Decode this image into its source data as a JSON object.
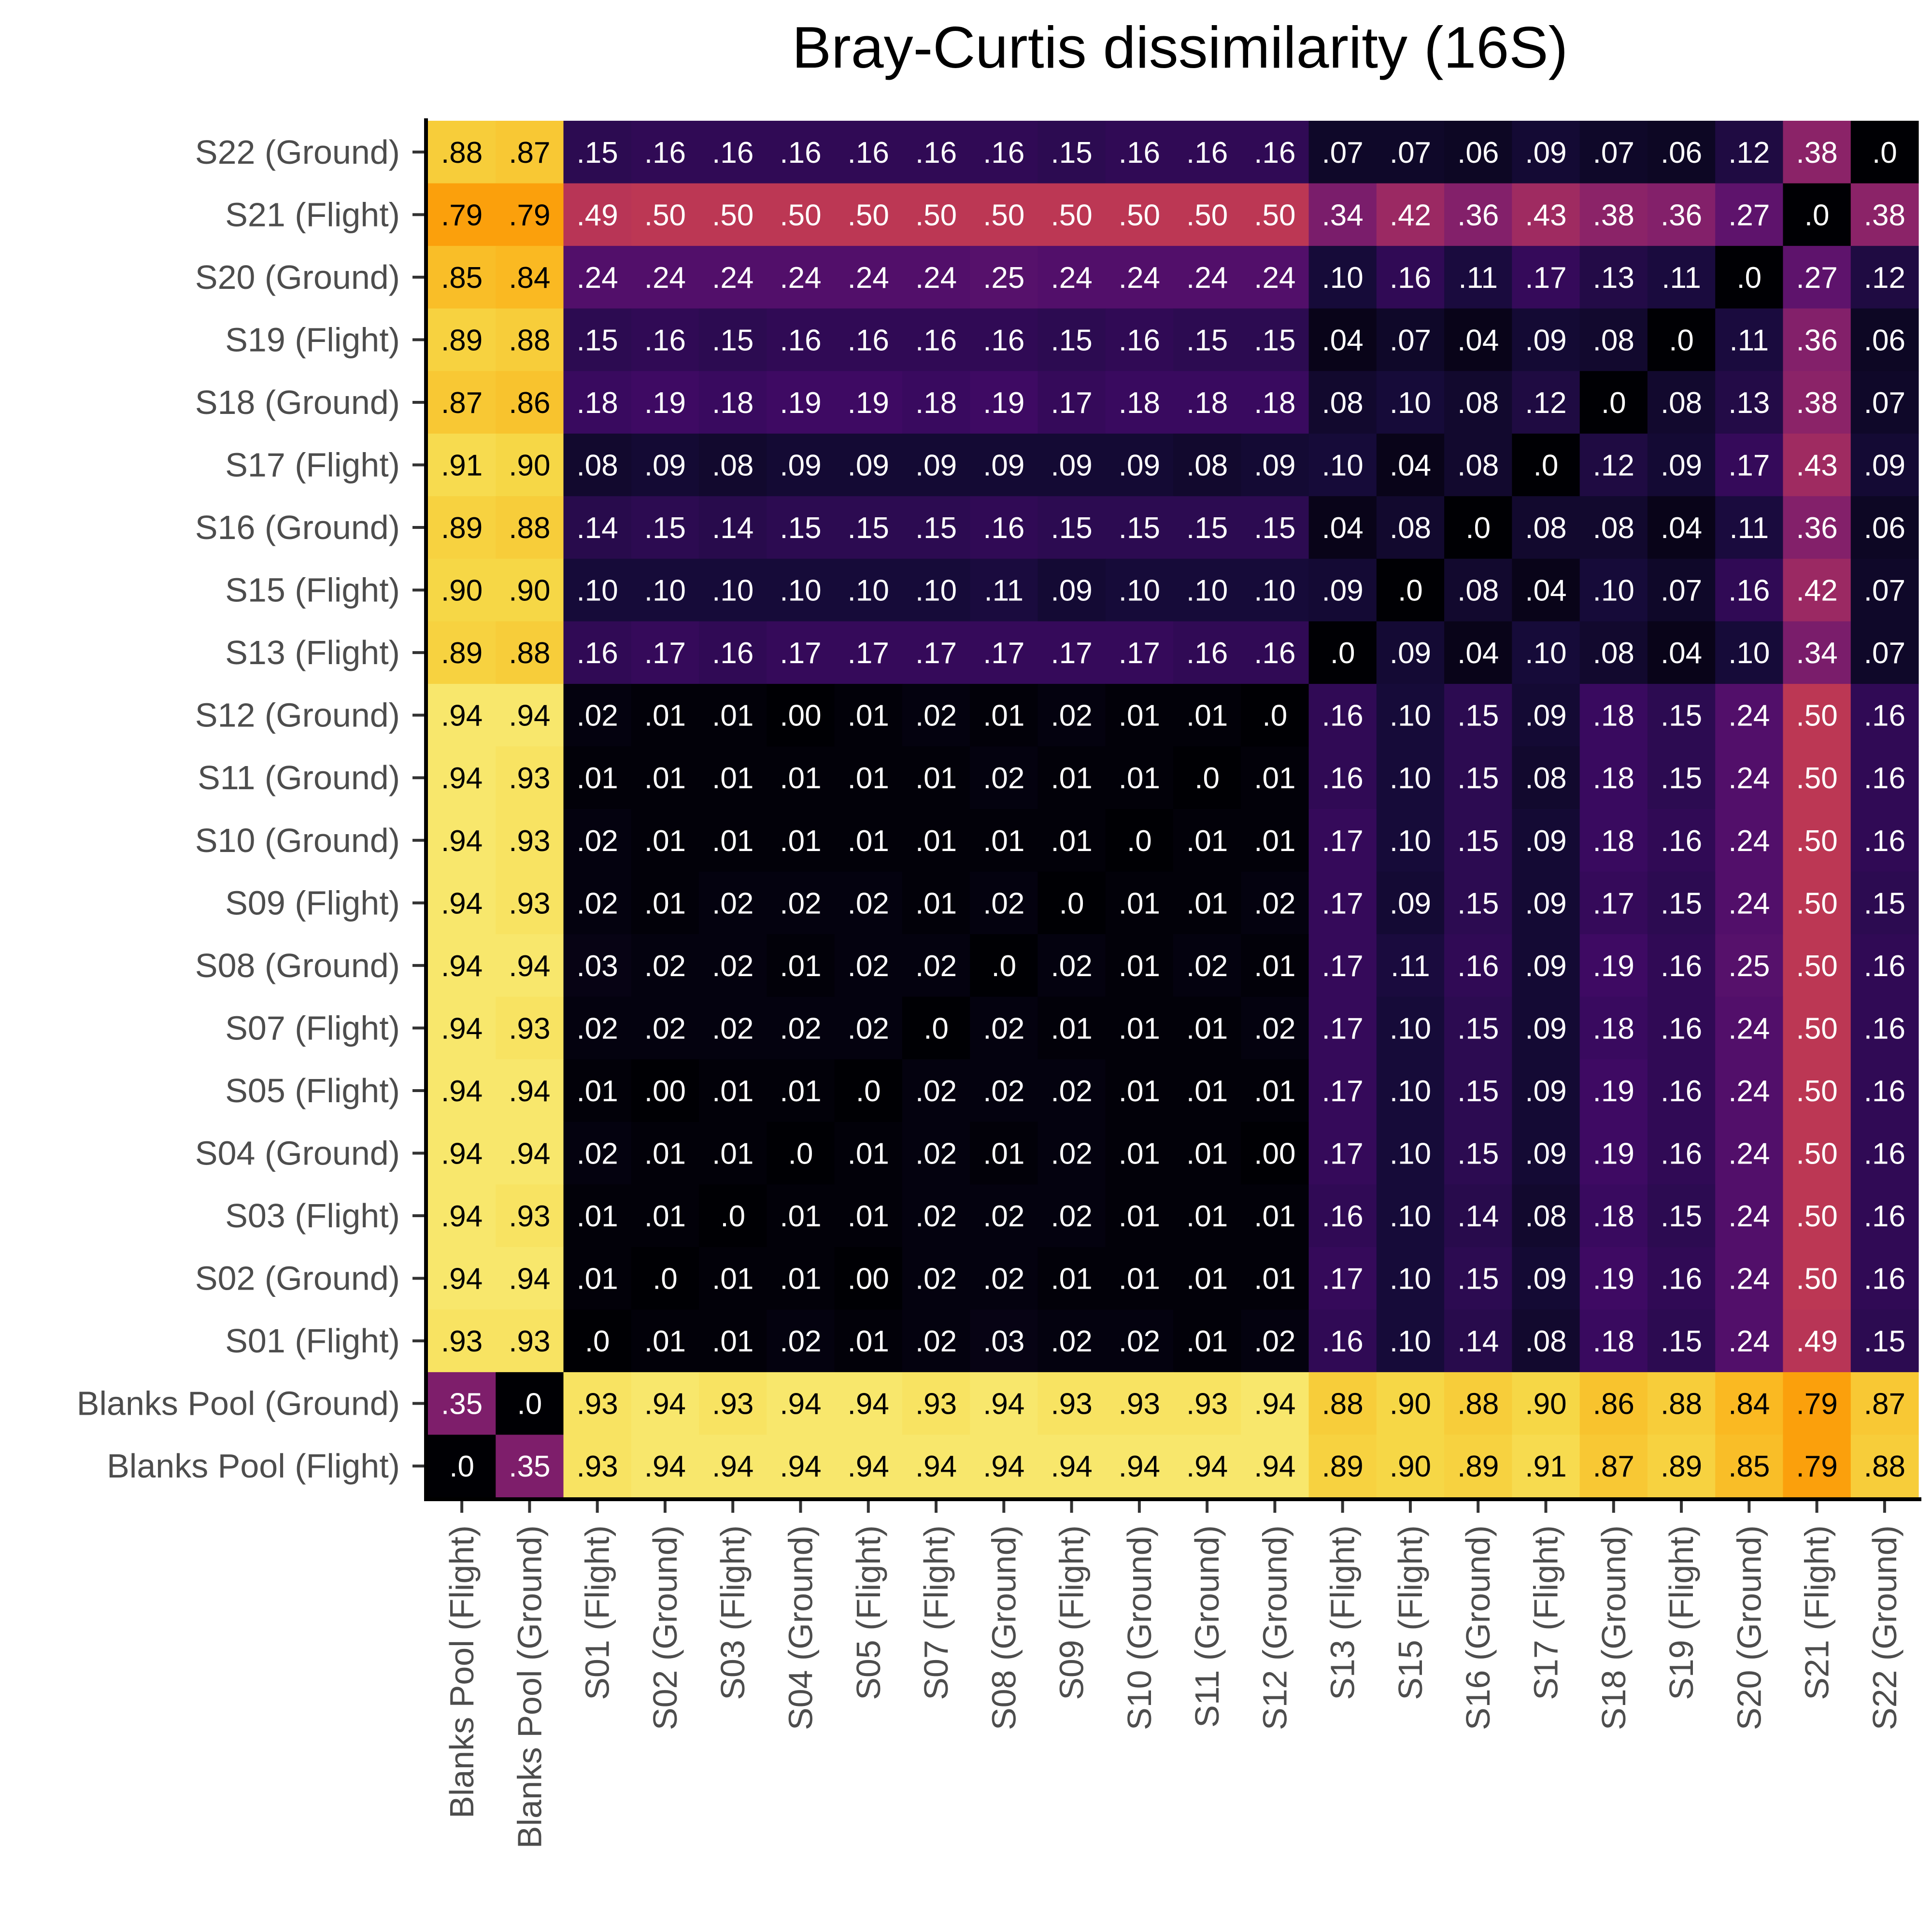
{
  "chart_data": {
    "type": "heatmap",
    "title": "Bray-Curtis dissimilarity (16S)",
    "xlabel": "",
    "ylabel": "",
    "colormap": "inferno",
    "color_range": [
      0,
      1
    ],
    "legend": "none",
    "x_labels": [
      "Blanks Pool (Flight)",
      "Blanks Pool (Ground)",
      "S01 (Flight)",
      "S02 (Ground)",
      "S03 (Flight)",
      "S04 (Ground)",
      "S05 (Flight)",
      "S07 (Flight)",
      "S08 (Ground)",
      "S09 (Flight)",
      "S10 (Ground)",
      "S11 (Ground)",
      "S12 (Ground)",
      "S13 (Flight)",
      "S15 (Flight)",
      "S16 (Ground)",
      "S17 (Flight)",
      "S18 (Ground)",
      "S19 (Flight)",
      "S20 (Ground)",
      "S21 (Flight)",
      "S22 (Ground)"
    ],
    "y_labels_top_to_bottom": [
      "S22 (Ground)",
      "S21 (Flight)",
      "S20 (Ground)",
      "S19 (Flight)",
      "S18 (Ground)",
      "S17 (Flight)",
      "S16 (Ground)",
      "S15 (Flight)",
      "S13 (Flight)",
      "S12 (Ground)",
      "S11 (Ground)",
      "S10 (Ground)",
      "S09 (Flight)",
      "S08 (Ground)",
      "S07 (Flight)",
      "S05 (Flight)",
      "S04 (Ground)",
      "S03 (Flight)",
      "S02 (Ground)",
      "S01 (Flight)",
      "Blanks Pool (Ground)",
      "Blanks Pool (Flight)"
    ],
    "values": [
      [
        0.88,
        0.87,
        0.15,
        0.16,
        0.16,
        0.16,
        0.16,
        0.16,
        0.16,
        0.15,
        0.16,
        0.16,
        0.16,
        0.07,
        0.07,
        0.06,
        0.09,
        0.07,
        0.06,
        0.12,
        0.38,
        0.0
      ],
      [
        0.79,
        0.79,
        0.49,
        0.5,
        0.5,
        0.5,
        0.5,
        0.5,
        0.5,
        0.5,
        0.5,
        0.5,
        0.5,
        0.34,
        0.42,
        0.36,
        0.43,
        0.38,
        0.36,
        0.27,
        0.0,
        0.38
      ],
      [
        0.85,
        0.84,
        0.24,
        0.24,
        0.24,
        0.24,
        0.24,
        0.24,
        0.25,
        0.24,
        0.24,
        0.24,
        0.24,
        0.1,
        0.16,
        0.11,
        0.17,
        0.13,
        0.11,
        0.0,
        0.27,
        0.12
      ],
      [
        0.89,
        0.88,
        0.15,
        0.16,
        0.15,
        0.16,
        0.16,
        0.16,
        0.16,
        0.15,
        0.16,
        0.15,
        0.15,
        0.04,
        0.07,
        0.04,
        0.09,
        0.08,
        0.0,
        0.11,
        0.36,
        0.06
      ],
      [
        0.87,
        0.86,
        0.18,
        0.19,
        0.18,
        0.19,
        0.19,
        0.18,
        0.19,
        0.17,
        0.18,
        0.18,
        0.18,
        0.08,
        0.1,
        0.08,
        0.12,
        0.0,
        0.08,
        0.13,
        0.38,
        0.07
      ],
      [
        0.91,
        0.9,
        0.08,
        0.09,
        0.08,
        0.09,
        0.09,
        0.09,
        0.09,
        0.09,
        0.09,
        0.08,
        0.09,
        0.1,
        0.04,
        0.08,
        0.0,
        0.12,
        0.09,
        0.17,
        0.43,
        0.09
      ],
      [
        0.89,
        0.88,
        0.14,
        0.15,
        0.14,
        0.15,
        0.15,
        0.15,
        0.16,
        0.15,
        0.15,
        0.15,
        0.15,
        0.04,
        0.08,
        0.0,
        0.08,
        0.08,
        0.04,
        0.11,
        0.36,
        0.06
      ],
      [
        0.9,
        0.9,
        0.1,
        0.1,
        0.1,
        0.1,
        0.1,
        0.1,
        0.11,
        0.09,
        0.1,
        0.1,
        0.1,
        0.09,
        0.0,
        0.08,
        0.04,
        0.1,
        0.07,
        0.16,
        0.42,
        0.07
      ],
      [
        0.89,
        0.88,
        0.16,
        0.17,
        0.16,
        0.17,
        0.17,
        0.17,
        0.17,
        0.17,
        0.17,
        0.16,
        0.16,
        0.0,
        0.09,
        0.04,
        0.1,
        0.08,
        0.04,
        0.1,
        0.34,
        0.07
      ],
      [
        0.94,
        0.94,
        0.02,
        0.01,
        0.01,
        0.0,
        0.01,
        0.02,
        0.01,
        0.02,
        0.01,
        0.01,
        0.0,
        0.16,
        0.1,
        0.15,
        0.09,
        0.18,
        0.15,
        0.24,
        0.5,
        0.16
      ],
      [
        0.94,
        0.93,
        0.01,
        0.01,
        0.01,
        0.01,
        0.01,
        0.01,
        0.02,
        0.01,
        0.01,
        0.0,
        0.01,
        0.16,
        0.1,
        0.15,
        0.08,
        0.18,
        0.15,
        0.24,
        0.5,
        0.16
      ],
      [
        0.94,
        0.93,
        0.02,
        0.01,
        0.01,
        0.01,
        0.01,
        0.01,
        0.01,
        0.01,
        0.0,
        0.01,
        0.01,
        0.17,
        0.1,
        0.15,
        0.09,
        0.18,
        0.16,
        0.24,
        0.5,
        0.16
      ],
      [
        0.94,
        0.93,
        0.02,
        0.01,
        0.02,
        0.02,
        0.02,
        0.01,
        0.02,
        0.0,
        0.01,
        0.01,
        0.02,
        0.17,
        0.09,
        0.15,
        0.09,
        0.17,
        0.15,
        0.24,
        0.5,
        0.15
      ],
      [
        0.94,
        0.94,
        0.03,
        0.02,
        0.02,
        0.01,
        0.02,
        0.02,
        0.0,
        0.02,
        0.01,
        0.02,
        0.01,
        0.17,
        0.11,
        0.16,
        0.09,
        0.19,
        0.16,
        0.25,
        0.5,
        0.16
      ],
      [
        0.94,
        0.93,
        0.02,
        0.02,
        0.02,
        0.02,
        0.02,
        0.0,
        0.02,
        0.01,
        0.01,
        0.01,
        0.02,
        0.17,
        0.1,
        0.15,
        0.09,
        0.18,
        0.16,
        0.24,
        0.5,
        0.16
      ],
      [
        0.94,
        0.94,
        0.01,
        0.0,
        0.01,
        0.01,
        0.0,
        0.02,
        0.02,
        0.02,
        0.01,
        0.01,
        0.01,
        0.17,
        0.1,
        0.15,
        0.09,
        0.19,
        0.16,
        0.24,
        0.5,
        0.16
      ],
      [
        0.94,
        0.94,
        0.02,
        0.01,
        0.01,
        0.0,
        0.01,
        0.02,
        0.01,
        0.02,
        0.01,
        0.01,
        0.0,
        0.17,
        0.1,
        0.15,
        0.09,
        0.19,
        0.16,
        0.24,
        0.5,
        0.16
      ],
      [
        0.94,
        0.93,
        0.01,
        0.01,
        0.0,
        0.01,
        0.01,
        0.02,
        0.02,
        0.02,
        0.01,
        0.01,
        0.01,
        0.16,
        0.1,
        0.14,
        0.08,
        0.18,
        0.15,
        0.24,
        0.5,
        0.16
      ],
      [
        0.94,
        0.94,
        0.01,
        0.0,
        0.01,
        0.01,
        0.0,
        0.02,
        0.02,
        0.01,
        0.01,
        0.01,
        0.01,
        0.17,
        0.1,
        0.15,
        0.09,
        0.19,
        0.16,
        0.24,
        0.5,
        0.16
      ],
      [
        0.93,
        0.93,
        0.0,
        0.01,
        0.01,
        0.02,
        0.01,
        0.02,
        0.03,
        0.02,
        0.02,
        0.01,
        0.02,
        0.16,
        0.1,
        0.14,
        0.08,
        0.18,
        0.15,
        0.24,
        0.49,
        0.15
      ],
      [
        0.35,
        0.0,
        0.93,
        0.94,
        0.93,
        0.94,
        0.94,
        0.93,
        0.94,
        0.93,
        0.93,
        0.93,
        0.94,
        0.88,
        0.9,
        0.88,
        0.9,
        0.86,
        0.88,
        0.84,
        0.79,
        0.87
      ],
      [
        0.0,
        0.35,
        0.93,
        0.94,
        0.94,
        0.94,
        0.94,
        0.94,
        0.94,
        0.94,
        0.94,
        0.94,
        0.94,
        0.89,
        0.9,
        0.89,
        0.91,
        0.87,
        0.89,
        0.85,
        0.79,
        0.88
      ]
    ],
    "cell_labels": [
      [
        ".88",
        ".87",
        ".15",
        ".16",
        ".16",
        ".16",
        ".16",
        ".16",
        ".16",
        ".15",
        ".16",
        ".16",
        ".16",
        ".07",
        ".07",
        ".06",
        ".09",
        ".07",
        ".06",
        ".12",
        ".38",
        ".0"
      ],
      [
        ".79",
        ".79",
        ".49",
        ".50",
        ".50",
        ".50",
        ".50",
        ".50",
        ".50",
        ".50",
        ".50",
        ".50",
        ".50",
        ".34",
        ".42",
        ".36",
        ".43",
        ".38",
        ".36",
        ".27",
        ".0",
        ".38"
      ],
      [
        ".85",
        ".84",
        ".24",
        ".24",
        ".24",
        ".24",
        ".24",
        ".24",
        ".25",
        ".24",
        ".24",
        ".24",
        ".24",
        ".10",
        ".16",
        ".11",
        ".17",
        ".13",
        ".11",
        ".0",
        ".27",
        ".12"
      ],
      [
        ".89",
        ".88",
        ".15",
        ".16",
        ".15",
        ".16",
        ".16",
        ".16",
        ".16",
        ".15",
        ".16",
        ".15",
        ".15",
        ".04",
        ".07",
        ".04",
        ".09",
        ".08",
        ".0",
        ".11",
        ".36",
        ".06"
      ],
      [
        ".87",
        ".86",
        ".18",
        ".19",
        ".18",
        ".19",
        ".19",
        ".18",
        ".19",
        ".17",
        ".18",
        ".18",
        ".18",
        ".08",
        ".10",
        ".08",
        ".12",
        ".0",
        ".08",
        ".13",
        ".38",
        ".07"
      ],
      [
        ".91",
        ".90",
        ".08",
        ".09",
        ".08",
        ".09",
        ".09",
        ".09",
        ".09",
        ".09",
        ".09",
        ".08",
        ".09",
        ".10",
        ".04",
        ".08",
        ".0",
        ".12",
        ".09",
        ".17",
        ".43",
        ".09"
      ],
      [
        ".89",
        ".88",
        ".14",
        ".15",
        ".14",
        ".15",
        ".15",
        ".15",
        ".16",
        ".15",
        ".15",
        ".15",
        ".15",
        ".04",
        ".08",
        ".0",
        ".08",
        ".08",
        ".04",
        ".11",
        ".36",
        ".06"
      ],
      [
        ".90",
        ".90",
        ".10",
        ".10",
        ".10",
        ".10",
        ".10",
        ".10",
        ".11",
        ".09",
        ".10",
        ".10",
        ".10",
        ".09",
        ".0",
        ".08",
        ".04",
        ".10",
        ".07",
        ".16",
        ".42",
        ".07"
      ],
      [
        ".89",
        ".88",
        ".16",
        ".17",
        ".16",
        ".17",
        ".17",
        ".17",
        ".17",
        ".17",
        ".17",
        ".16",
        ".16",
        ".0",
        ".09",
        ".04",
        ".10",
        ".08",
        ".04",
        ".10",
        ".34",
        ".07"
      ],
      [
        ".94",
        ".94",
        ".02",
        ".01",
        ".01",
        ".00",
        ".01",
        ".02",
        ".01",
        ".02",
        ".01",
        ".01",
        ".0",
        ".16",
        ".10",
        ".15",
        ".09",
        ".18",
        ".15",
        ".24",
        ".50",
        ".16"
      ],
      [
        ".94",
        ".93",
        ".01",
        ".01",
        ".01",
        ".01",
        ".01",
        ".01",
        ".02",
        ".01",
        ".01",
        ".0",
        ".01",
        ".16",
        ".10",
        ".15",
        ".08",
        ".18",
        ".15",
        ".24",
        ".50",
        ".16"
      ],
      [
        ".94",
        ".93",
        ".02",
        ".01",
        ".01",
        ".01",
        ".01",
        ".01",
        ".01",
        ".01",
        ".0",
        ".01",
        ".01",
        ".17",
        ".10",
        ".15",
        ".09",
        ".18",
        ".16",
        ".24",
        ".50",
        ".16"
      ],
      [
        ".94",
        ".93",
        ".02",
        ".01",
        ".02",
        ".02",
        ".02",
        ".01",
        ".02",
        ".0",
        ".01",
        ".01",
        ".02",
        ".17",
        ".09",
        ".15",
        ".09",
        ".17",
        ".15",
        ".24",
        ".50",
        ".15"
      ],
      [
        ".94",
        ".94",
        ".03",
        ".02",
        ".02",
        ".01",
        ".02",
        ".02",
        ".0",
        ".02",
        ".01",
        ".02",
        ".01",
        ".17",
        ".11",
        ".16",
        ".09",
        ".19",
        ".16",
        ".25",
        ".50",
        ".16"
      ],
      [
        ".94",
        ".93",
        ".02",
        ".02",
        ".02",
        ".02",
        ".02",
        ".0",
        ".02",
        ".01",
        ".01",
        ".01",
        ".02",
        ".17",
        ".10",
        ".15",
        ".09",
        ".18",
        ".16",
        ".24",
        ".50",
        ".16"
      ],
      [
        ".94",
        ".94",
        ".01",
        ".00",
        ".01",
        ".01",
        ".0",
        ".02",
        ".02",
        ".02",
        ".01",
        ".01",
        ".01",
        ".17",
        ".10",
        ".15",
        ".09",
        ".19",
        ".16",
        ".24",
        ".50",
        ".16"
      ],
      [
        ".94",
        ".94",
        ".02",
        ".01",
        ".01",
        ".0",
        ".01",
        ".02",
        ".01",
        ".02",
        ".01",
        ".01",
        ".00",
        ".17",
        ".10",
        ".15",
        ".09",
        ".19",
        ".16",
        ".24",
        ".50",
        ".16"
      ],
      [
        ".94",
        ".93",
        ".01",
        ".01",
        ".0",
        ".01",
        ".01",
        ".02",
        ".02",
        ".02",
        ".01",
        ".01",
        ".01",
        ".16",
        ".10",
        ".14",
        ".08",
        ".18",
        ".15",
        ".24",
        ".50",
        ".16"
      ],
      [
        ".94",
        ".94",
        ".01",
        ".0",
        ".01",
        ".01",
        ".00",
        ".02",
        ".02",
        ".01",
        ".01",
        ".01",
        ".01",
        ".17",
        ".10",
        ".15",
        ".09",
        ".19",
        ".16",
        ".24",
        ".50",
        ".16"
      ],
      [
        ".93",
        ".93",
        ".0",
        ".01",
        ".01",
        ".02",
        ".01",
        ".02",
        ".03",
        ".02",
        ".02",
        ".01",
        ".02",
        ".16",
        ".10",
        ".14",
        ".08",
        ".18",
        ".15",
        ".24",
        ".49",
        ".15"
      ],
      [
        ".35",
        ".0",
        ".93",
        ".94",
        ".93",
        ".94",
        ".94",
        ".93",
        ".94",
        ".93",
        ".93",
        ".93",
        ".94",
        ".88",
        ".90",
        ".88",
        ".90",
        ".86",
        ".88",
        ".84",
        ".79",
        ".87"
      ],
      [
        ".0",
        ".35",
        ".93",
        ".94",
        ".94",
        ".94",
        ".94",
        ".94",
        ".94",
        ".94",
        ".94",
        ".94",
        ".94",
        ".89",
        ".90",
        ".89",
        ".91",
        ".87",
        ".89",
        ".85",
        ".79",
        ".88"
      ]
    ]
  }
}
